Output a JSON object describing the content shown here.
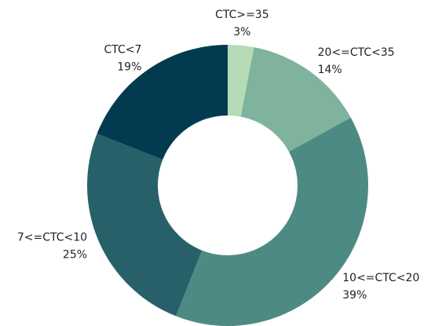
{
  "chart_data": {
    "type": "donut",
    "categories": [
      "CTC>=35",
      "20<=CTC<35",
      "10<=CTC<20",
      "7<=CTC<10",
      "CTC<7"
    ],
    "values": [
      3,
      14,
      39,
      25,
      19
    ],
    "value_labels": [
      "3%",
      "14%",
      "39%",
      "25%",
      "19%"
    ],
    "colors": [
      "#b5dbb7",
      "#7fb39e",
      "#4e8a84",
      "#28606a",
      "#023b4f"
    ]
  }
}
